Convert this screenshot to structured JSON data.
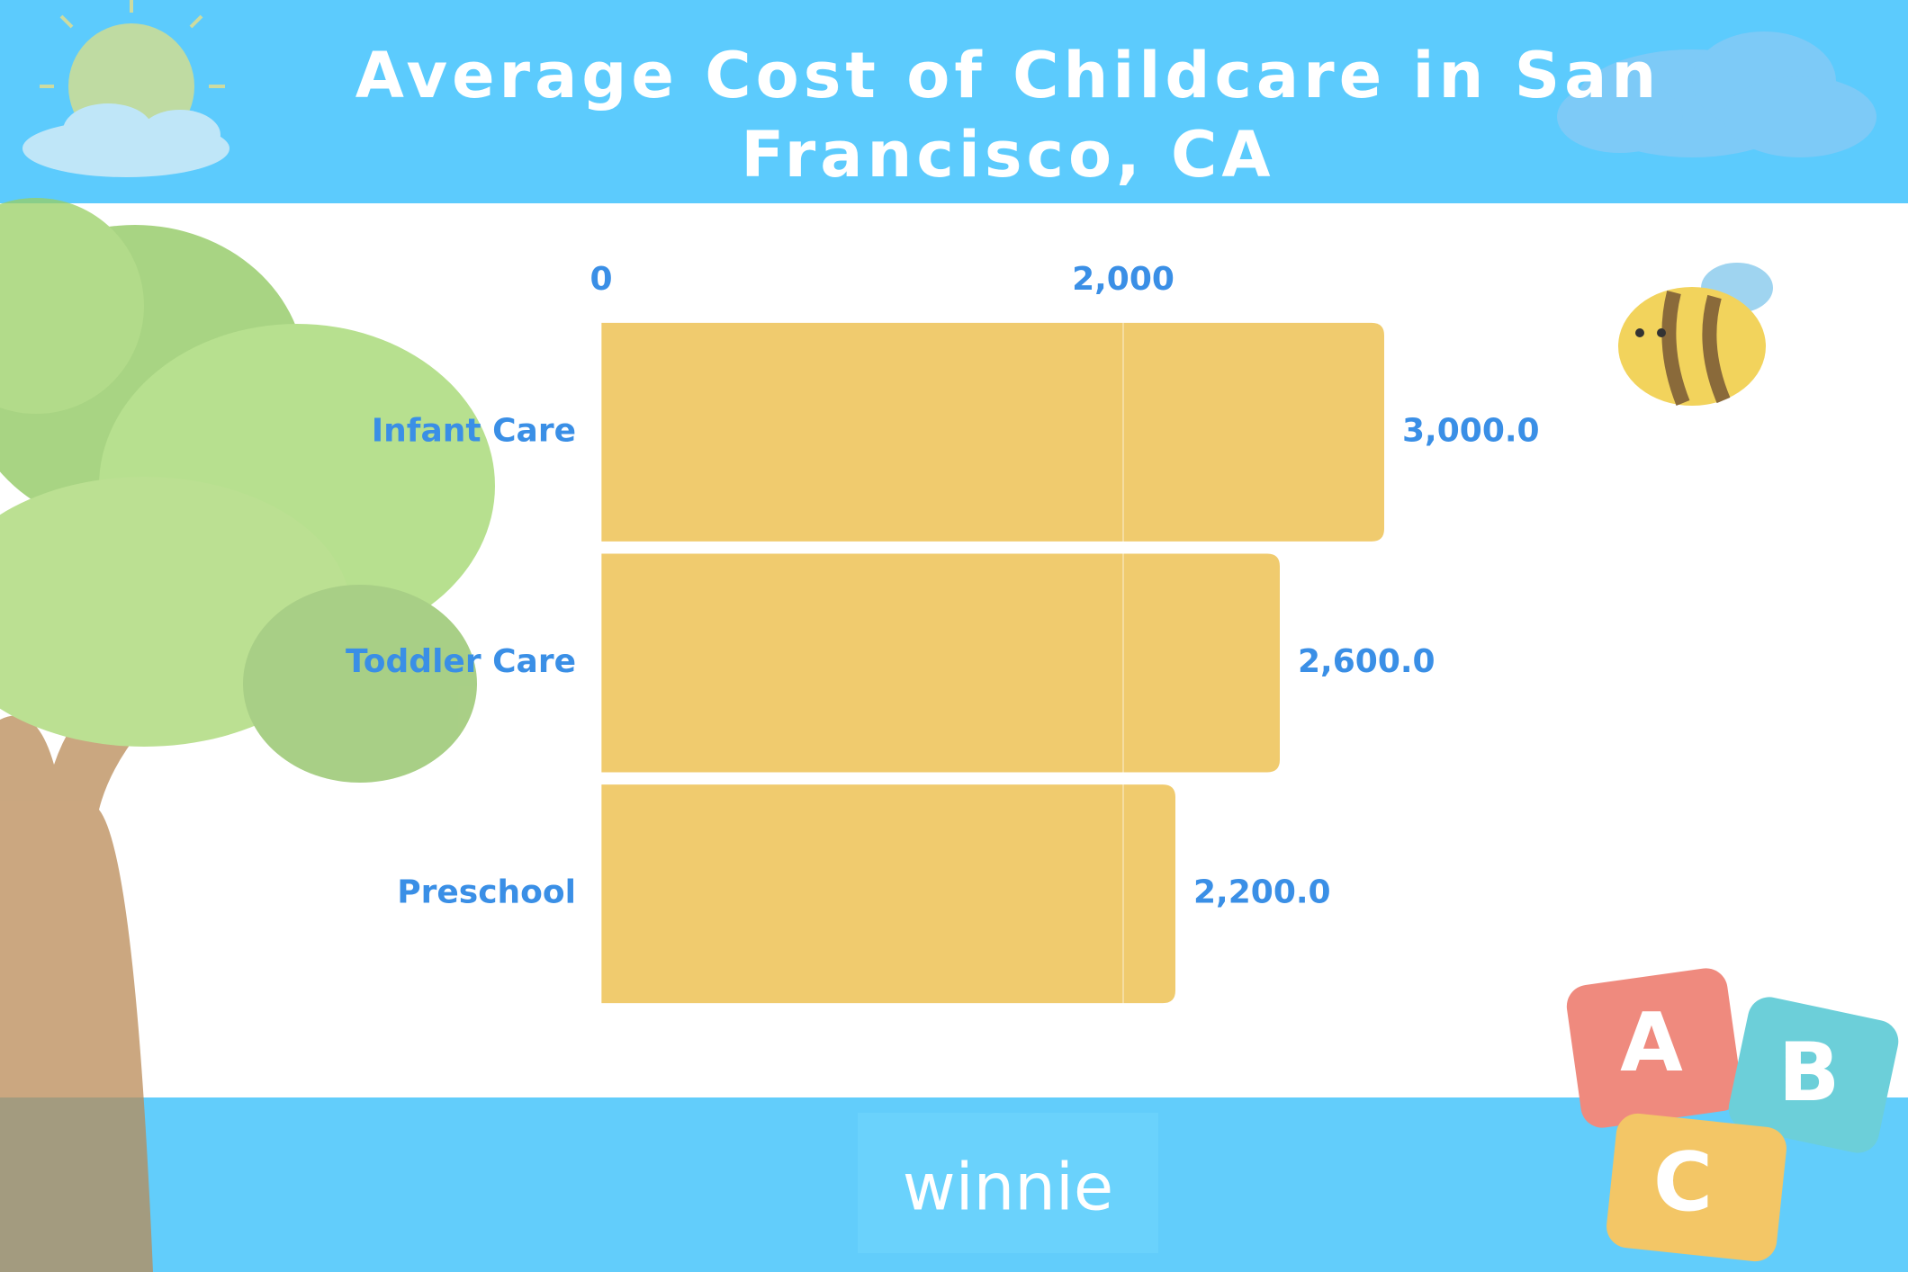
{
  "chart_data": {
    "type": "hbar",
    "title": "Average Cost of Childcare in San Francisco, CA",
    "categories": [
      "Infant Care",
      "Toddler Care",
      "Preschool"
    ],
    "values": [
      3000,
      2600,
      2200
    ],
    "value_labels": [
      "3,000.0",
      "2,600.0",
      "2,200.0"
    ],
    "color": "#f0cb6e",
    "xlim": [
      0,
      3500
    ],
    "xticks": [
      0,
      {
        "value": 2000,
        "label": "2,000"
      }
    ],
    "grid": true
  },
  "brand": "winnie",
  "blocks": [
    "A",
    "B",
    "C"
  ]
}
